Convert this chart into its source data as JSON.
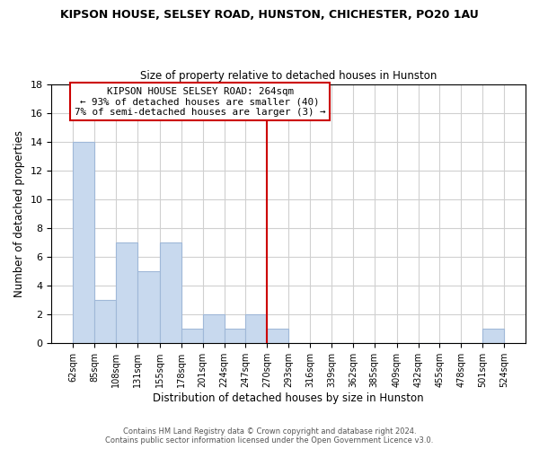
{
  "title1": "KIPSON HOUSE, SELSEY ROAD, HUNSTON, CHICHESTER, PO20 1AU",
  "title2": "Size of property relative to detached houses in Hunston",
  "xlabel": "Distribution of detached houses by size in Hunston",
  "ylabel": "Number of detached properties",
  "bar_color": "#c8d9ee",
  "bar_edge_color": "#a0b8d8",
  "ref_line_x": 270,
  "ref_line_color": "#cc0000",
  "bin_edges": [
    62,
    85,
    108,
    131,
    155,
    178,
    201,
    224,
    247,
    270,
    293,
    316,
    339,
    362,
    385,
    409,
    432,
    455,
    478,
    501,
    524
  ],
  "counts": [
    14,
    3,
    7,
    5,
    7,
    1,
    2,
    1,
    2,
    1,
    0,
    0,
    0,
    0,
    0,
    0,
    0,
    0,
    0,
    1
  ],
  "tick_labels": [
    "62sqm",
    "85sqm",
    "108sqm",
    "131sqm",
    "155sqm",
    "178sqm",
    "201sqm",
    "224sqm",
    "247sqm",
    "270sqm",
    "293sqm",
    "316sqm",
    "339sqm",
    "362sqm",
    "385sqm",
    "409sqm",
    "432sqm",
    "455sqm",
    "478sqm",
    "501sqm",
    "524sqm"
  ],
  "ylim": [
    0,
    18
  ],
  "yticks": [
    0,
    2,
    4,
    6,
    8,
    10,
    12,
    14,
    16,
    18
  ],
  "annotation_title": "KIPSON HOUSE SELSEY ROAD: 264sqm",
  "annotation_line1": "← 93% of detached houses are smaller (40)",
  "annotation_line2": "7% of semi-detached houses are larger (3) →",
  "annotation_border_color": "#cc0000",
  "footer1": "Contains HM Land Registry data © Crown copyright and database right 2024.",
  "footer2": "Contains public sector information licensed under the Open Government Licence v3.0.",
  "bg_color": "#ffffff",
  "grid_color": "#d0d0d0"
}
